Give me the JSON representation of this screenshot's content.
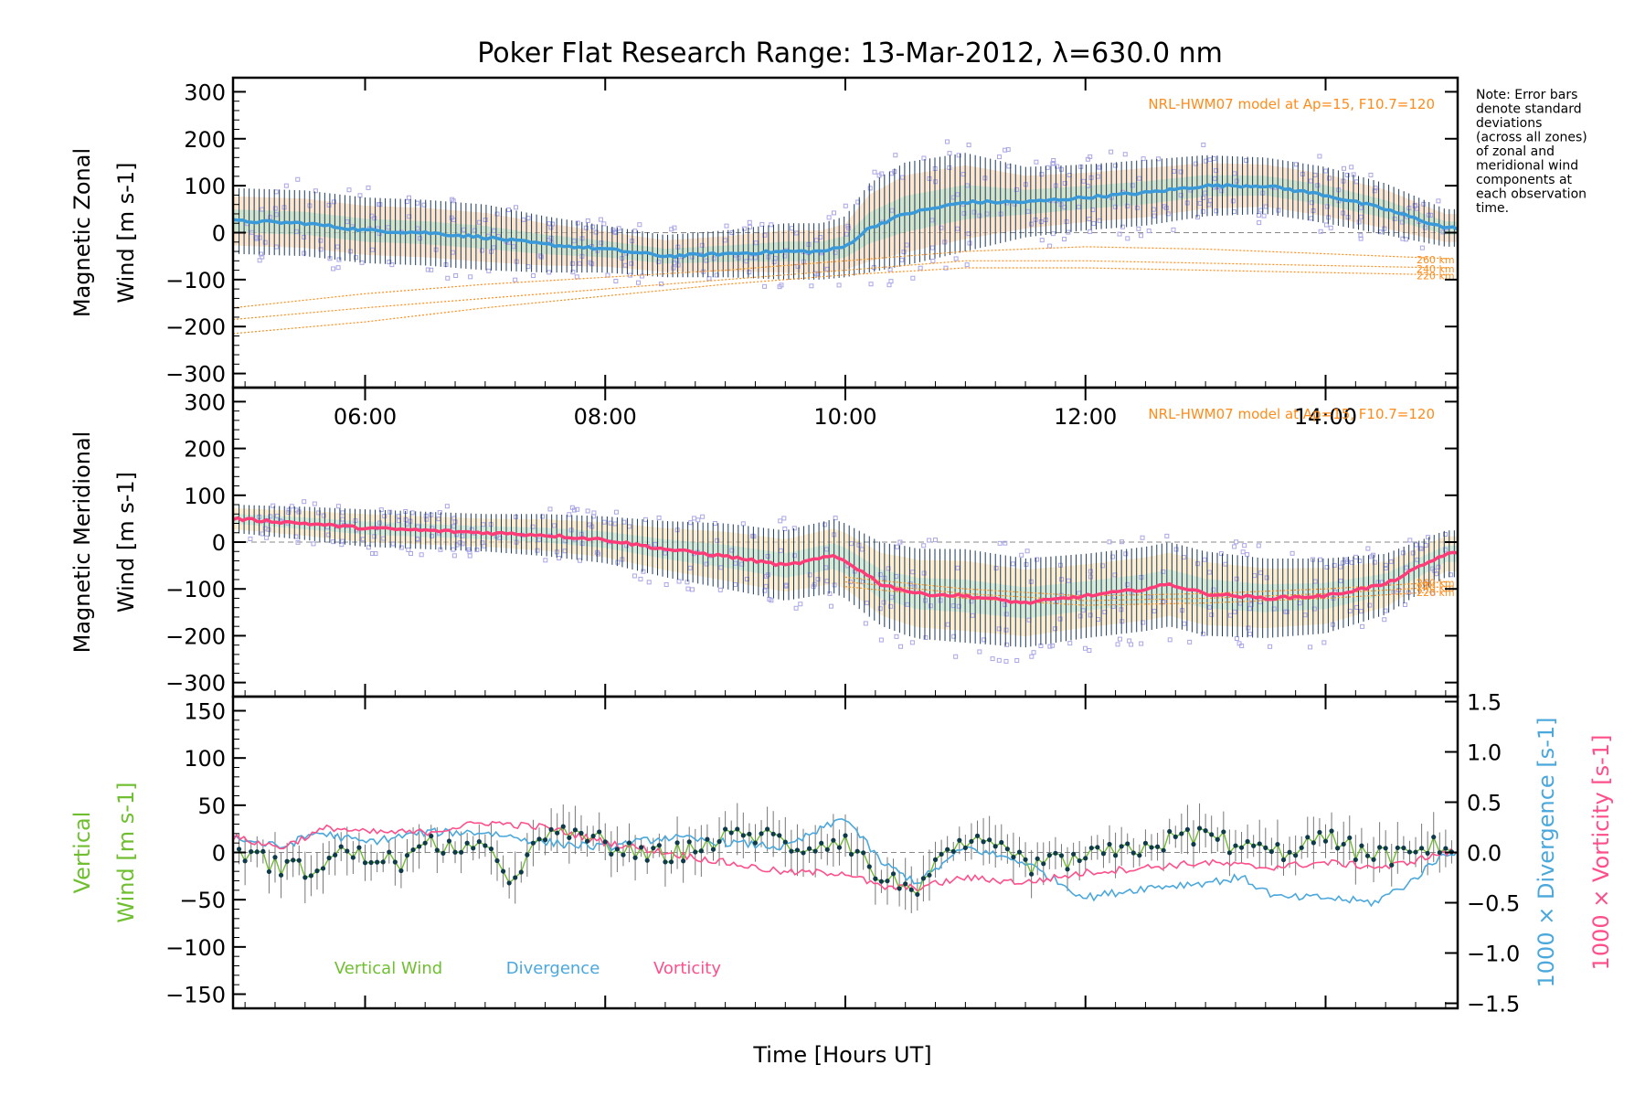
{
  "title": "Poker Flat Research Range: 13-Mar-2012, λ=630.0 nm",
  "note": [
    "Note: Error bars",
    "denote standard",
    "deviations",
    "(across all zones)",
    "of zonal and",
    "meridional wind",
    "components at",
    "each observation",
    "time."
  ],
  "xlabel": "Time [Hours UT]",
  "colors": {
    "axis": "#000000",
    "zonal_line": "#3a9ad9",
    "meridional_line": "#ff3c78",
    "vertical_wind": "#6fbf30",
    "divergence": "#4aa8dc",
    "vorticity": "#ff4f8a",
    "model": "#ff8c1a",
    "scatter": "#a9a6e6",
    "errorbar_dark": "#1a3a5c",
    "errorbar_gray": "#777777",
    "points": "#0e3a4a"
  },
  "chart_data": [
    {
      "type": "line",
      "panel": "zonal",
      "ylabel": [
        "Magnetic Zonal",
        "Wind [m s-1]"
      ],
      "ylim": [
        -330,
        330
      ],
      "y_ticks": [
        -300,
        -200,
        -100,
        0,
        100,
        200,
        300
      ],
      "y_tick_labels": [
        "−300",
        "−200",
        "−100",
        "0",
        "100",
        "200",
        "300"
      ],
      "xlim": [
        4.9,
        15.1
      ],
      "x_ticks": [
        6,
        8,
        10,
        12,
        14
      ],
      "x_tick_labels": [
        "06:00",
        "08:00",
        "10:00",
        "12:00",
        "14:00"
      ],
      "annotation": "NRL-HWM07 model at Ap=15, F10.7=120",
      "model_labels": [
        "260 km",
        "240 km",
        "220 km"
      ],
      "series": [
        {
          "role": "mean",
          "x": [
            4.9,
            5.5,
            6.0,
            6.5,
            7.0,
            7.5,
            8.0,
            8.5,
            9.0,
            9.5,
            9.8,
            10.0,
            10.2,
            10.5,
            11.0,
            11.5,
            12.0,
            12.5,
            13.0,
            13.5,
            14.0,
            14.5,
            15.0
          ],
          "y": [
            25,
            20,
            5,
            0,
            -10,
            -25,
            -35,
            -50,
            -45,
            -40,
            -40,
            -30,
            10,
            40,
            65,
            65,
            75,
            85,
            100,
            100,
            80,
            50,
            10
          ]
        },
        {
          "role": "std",
          "x": [
            4.9,
            5.5,
            6.0,
            6.5,
            7.0,
            7.5,
            8.0,
            8.5,
            9.0,
            9.5,
            9.8,
            10.0,
            10.2,
            10.5,
            11.0,
            11.5,
            12.0,
            12.5,
            13.0,
            13.5,
            14.0,
            14.5,
            15.0
          ],
          "y": [
            70,
            70,
            70,
            70,
            70,
            60,
            50,
            45,
            50,
            60,
            60,
            65,
            95,
            110,
            105,
            75,
            70,
            70,
            65,
            60,
            60,
            55,
            40
          ]
        },
        {
          "role": "model",
          "label": "260 km",
          "x": [
            4.9,
            6.0,
            7.0,
            8.0,
            9.0,
            10.0,
            11.0,
            12.0,
            13.0,
            14.0,
            15.0
          ],
          "y": [
            -160,
            -130,
            -110,
            -95,
            -80,
            -60,
            -40,
            -30,
            -35,
            -45,
            -55
          ]
        },
        {
          "role": "model",
          "label": "240 km",
          "x": [
            4.9,
            6.0,
            7.0,
            8.0,
            9.0,
            10.0,
            11.0,
            12.0,
            13.0,
            14.0,
            15.0
          ],
          "y": [
            -185,
            -160,
            -140,
            -120,
            -100,
            -80,
            -60,
            -60,
            -65,
            -70,
            -75
          ]
        },
        {
          "role": "model",
          "label": "220 km",
          "x": [
            4.9,
            6.0,
            7.0,
            8.0,
            9.0,
            10.0,
            11.0,
            12.0,
            13.0,
            14.0,
            15.0
          ],
          "y": [
            -215,
            -190,
            -160,
            -135,
            -110,
            -90,
            -75,
            -75,
            -80,
            -85,
            -90
          ]
        }
      ]
    },
    {
      "type": "line",
      "panel": "meridional",
      "ylabel": [
        "Magnetic Meridional",
        "Wind [m s-1]"
      ],
      "ylim": [
        -330,
        330
      ],
      "y_ticks": [
        -300,
        -200,
        -100,
        0,
        100,
        200,
        300
      ],
      "y_tick_labels": [
        "−300",
        "−200",
        "−100",
        "0",
        "100",
        "200",
        "300"
      ],
      "xlim": [
        4.9,
        15.1
      ],
      "x_ticks": [
        6,
        8,
        10,
        12,
        14
      ],
      "annotation": "NRL-HWM07 model at Ap=15, F10.7=120",
      "model_labels": [
        "260 km",
        "240 km",
        "220 km"
      ],
      "series": [
        {
          "role": "mean",
          "x": [
            4.9,
            5.5,
            6.0,
            6.5,
            7.0,
            7.5,
            8.0,
            8.5,
            9.0,
            9.5,
            9.9,
            10.0,
            10.3,
            10.6,
            11.0,
            11.5,
            12.0,
            12.5,
            12.7,
            13.0,
            13.5,
            14.0,
            14.5,
            15.0
          ],
          "y": [
            50,
            40,
            30,
            25,
            20,
            15,
            5,
            -15,
            -30,
            -50,
            -30,
            -40,
            -90,
            -110,
            -115,
            -130,
            -115,
            -100,
            -90,
            -110,
            -120,
            -115,
            -90,
            -25
          ]
        },
        {
          "role": "std",
          "x": [
            4.9,
            6.0,
            7.0,
            8.0,
            9.0,
            10.0,
            10.5,
            11.0,
            12.0,
            13.0,
            14.0,
            15.0
          ],
          "y": [
            30,
            40,
            40,
            50,
            70,
            80,
            95,
            100,
            90,
            90,
            80,
            50
          ]
        },
        {
          "role": "model",
          "label": "260 km",
          "x": [
            10.0,
            11.0,
            12.0,
            13.0,
            14.0,
            15.0
          ],
          "y": [
            -75,
            -100,
            -115,
            -110,
            -100,
            -85
          ]
        },
        {
          "role": "model",
          "label": "240 km",
          "x": [
            10.0,
            11.0,
            12.0,
            13.0,
            14.0,
            15.0
          ],
          "y": [
            -85,
            -110,
            -125,
            -120,
            -110,
            -95
          ]
        },
        {
          "role": "model",
          "label": "220 km",
          "x": [
            10.0,
            11.0,
            12.0,
            13.0,
            14.0,
            15.0
          ],
          "y": [
            -95,
            -120,
            -135,
            -130,
            -120,
            -105
          ]
        }
      ]
    },
    {
      "type": "line",
      "panel": "vertical",
      "ylabel": [
        "Vertical",
        "Wind [m s-1]"
      ],
      "y2label": [
        "1000 × Divergence [s-1]",
        "1000 × Vorticity [s-1]"
      ],
      "ylim": [
        -165,
        165
      ],
      "y_ticks": [
        -150,
        -100,
        -50,
        0,
        50,
        100,
        150
      ],
      "y_tick_labels": [
        "−150",
        "−100",
        "−50",
        "0",
        "50",
        "100",
        "150"
      ],
      "y2lim": [
        -1.55,
        1.55
      ],
      "y2_ticks": [
        -1.5,
        -1.0,
        -0.5,
        0.0,
        0.5,
        1.0,
        1.5
      ],
      "y2_tick_labels": [
        "−1.5",
        "−1.0",
        "−0.5",
        "0.0",
        "0.5",
        "1.0",
        "1.5"
      ],
      "xlim": [
        4.9,
        15.1
      ],
      "x_ticks": [
        6,
        8,
        10,
        12,
        14
      ],
      "legend": [
        "Vertical Wind",
        "Divergence",
        "Vorticity"
      ],
      "series": [
        {
          "name": "Vertical Wind",
          "x": [
            4.9,
            5.2,
            5.5,
            5.8,
            6.0,
            6.3,
            6.6,
            7.0,
            7.2,
            7.5,
            7.8,
            8.0,
            8.3,
            8.6,
            9.0,
            9.3,
            9.6,
            10.0,
            10.3,
            10.6,
            11.0,
            11.3,
            11.6,
            12.0,
            12.3,
            12.6,
            13.0,
            13.3,
            13.6,
            14.0,
            14.3,
            14.6,
            15.0
          ],
          "y": [
            5,
            -10,
            -20,
            0,
            -5,
            -10,
            10,
            0,
            -25,
            15,
            20,
            10,
            -5,
            0,
            15,
            20,
            5,
            15,
            -30,
            -35,
            10,
            0,
            -15,
            -5,
            0,
            10,
            20,
            5,
            0,
            15,
            0,
            -5,
            10
          ]
        },
        {
          "name": "Divergence",
          "x": [
            4.9,
            5.3,
            5.6,
            6.0,
            6.5,
            7.0,
            7.5,
            8.0,
            8.5,
            9.0,
            9.5,
            10.0,
            10.3,
            10.6,
            11.0,
            11.5,
            12.0,
            12.5,
            13.0,
            13.3,
            13.6,
            14.0,
            14.4,
            14.7,
            15.0
          ],
          "y": [
            0.15,
            0.05,
            0.2,
            0.1,
            0.2,
            0.2,
            0.1,
            0.05,
            0.15,
            0.1,
            0.05,
            0.35,
            -0.1,
            -0.3,
            0.05,
            -0.1,
            -0.45,
            -0.35,
            -0.3,
            -0.25,
            -0.45,
            -0.45,
            -0.5,
            -0.3,
            0.0
          ]
        },
        {
          "name": "Vorticity",
          "x": [
            4.9,
            5.3,
            5.7,
            6.0,
            6.5,
            7.0,
            7.5,
            8.0,
            8.5,
            9.0,
            9.5,
            10.0,
            10.3,
            10.6,
            11.0,
            11.5,
            12.0,
            12.5,
            13.0,
            13.5,
            14.0,
            14.5,
            15.0
          ],
          "y": [
            0.15,
            0.05,
            0.25,
            0.2,
            0.2,
            0.3,
            0.25,
            0.1,
            0.0,
            -0.1,
            -0.2,
            -0.2,
            -0.35,
            -0.35,
            -0.25,
            -0.3,
            -0.2,
            -0.15,
            -0.1,
            -0.15,
            -0.1,
            -0.15,
            0.0
          ]
        }
      ]
    }
  ]
}
